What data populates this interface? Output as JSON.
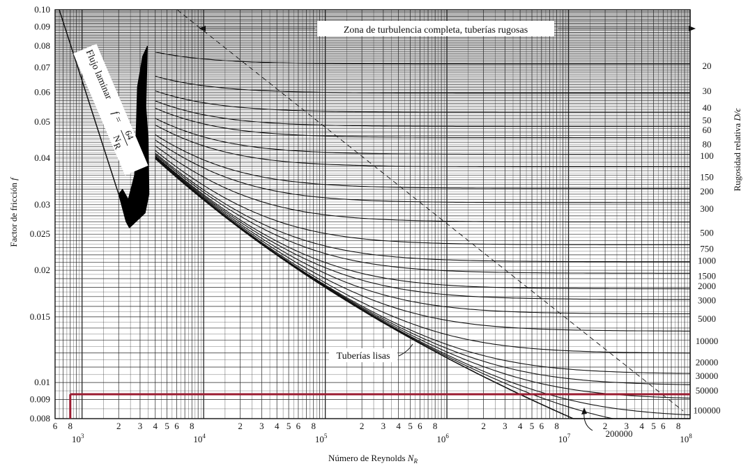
{
  "chart_data": {
    "type": "line",
    "xlabel": "Número de Reynolds",
    "xlabel_sub": "R",
    "xlabel_symbol": "N",
    "ylabel": "Factor de fricción",
    "ylabel_symbol": "f",
    "right_label": "Rugosidad relativa",
    "right_label_symbol": "D/ϵ",
    "x_scale": "log",
    "y_scale": "log",
    "xlim": [
      600,
      100000000
    ],
    "ylim": [
      0.008,
      0.1
    ],
    "grid": true,
    "y_ticks": [
      {
        "value": 0.1,
        "label": "0.10"
      },
      {
        "value": 0.09,
        "label": "0.09"
      },
      {
        "value": 0.08,
        "label": "0.08"
      },
      {
        "value": 0.07,
        "label": "0.07"
      },
      {
        "value": 0.06,
        "label": "0.06"
      },
      {
        "value": 0.05,
        "label": "0.05"
      },
      {
        "value": 0.04,
        "label": "0.04"
      },
      {
        "value": 0.03,
        "label": "0.03"
      },
      {
        "value": 0.025,
        "label": "0.025"
      },
      {
        "value": 0.02,
        "label": "0.02"
      },
      {
        "value": 0.015,
        "label": "0.015"
      },
      {
        "value": 0.01,
        "label": "0.01"
      },
      {
        "value": 0.009,
        "label": "0.009"
      },
      {
        "value": 0.008,
        "label": "0.008"
      }
    ],
    "x_decades": [
      {
        "value": 1000,
        "base": "10",
        "exp": "3"
      },
      {
        "value": 10000,
        "base": "10",
        "exp": "4"
      },
      {
        "value": 100000,
        "base": "10",
        "exp": "5"
      },
      {
        "value": 1000000,
        "base": "10",
        "exp": "6"
      },
      {
        "value": 10000000,
        "base": "10",
        "exp": "7"
      },
      {
        "value": 100000000,
        "base": "10",
        "exp": "8"
      }
    ],
    "x_minor_labels": [
      {
        "value": 600,
        "label": "6"
      },
      {
        "value": 800,
        "label": "8"
      },
      {
        "value": 2000,
        "label": "2"
      },
      {
        "value": 3000,
        "label": "3"
      },
      {
        "value": 4000,
        "label": "4"
      },
      {
        "value": 5000,
        "label": "5"
      },
      {
        "value": 6000,
        "label": "6"
      },
      {
        "value": 8000,
        "label": "8"
      },
      {
        "value": 20000,
        "label": "2"
      },
      {
        "value": 30000,
        "label": "3"
      },
      {
        "value": 40000,
        "label": "4"
      },
      {
        "value": 50000,
        "label": "5"
      },
      {
        "value": 60000,
        "label": "6"
      },
      {
        "value": 80000,
        "label": "8"
      },
      {
        "value": 200000,
        "label": "2"
      },
      {
        "value": 300000,
        "label": "3"
      },
      {
        "value": 400000,
        "label": "4"
      },
      {
        "value": 500000,
        "label": "5"
      },
      {
        "value": 600000,
        "label": "6"
      },
      {
        "value": 800000,
        "label": "8"
      },
      {
        "value": 2000000,
        "label": "2"
      },
      {
        "value": 3000000,
        "label": "3"
      },
      {
        "value": 4000000,
        "label": "4"
      },
      {
        "value": 5000000,
        "label": "5"
      },
      {
        "value": 6000000,
        "label": "6"
      },
      {
        "value": 8000000,
        "label": "8"
      },
      {
        "value": 20000000,
        "label": "2"
      },
      {
        "value": 30000000,
        "label": "3"
      },
      {
        "value": 40000000,
        "label": "4"
      },
      {
        "value": 50000000,
        "label": "5"
      },
      {
        "value": 60000000,
        "label": "6"
      },
      {
        "value": 80000000,
        "label": "8"
      }
    ],
    "relative_roughness": [
      {
        "label": "20",
        "value": 20,
        "f_rough": 0.0705
      },
      {
        "label": "30",
        "value": 30,
        "f_rough": 0.0605
      },
      {
        "label": "40",
        "value": 40,
        "f_rough": 0.0545
      },
      {
        "label": "50",
        "value": 50,
        "f_rough": 0.0505
      },
      {
        "label": "60",
        "value": 60,
        "f_rough": 0.0475
      },
      {
        "label": "80",
        "value": 80,
        "f_rough": 0.0435
      },
      {
        "label": "100",
        "value": 100,
        "f_rough": 0.0405
      },
      {
        "label": "150",
        "value": 150,
        "f_rough": 0.0355
      },
      {
        "label": "200",
        "value": 200,
        "f_rough": 0.0325
      },
      {
        "label": "300",
        "value": 300,
        "f_rough": 0.0292
      },
      {
        "label": "500",
        "value": 500,
        "f_rough": 0.0252
      },
      {
        "label": "750",
        "value": 750,
        "f_rough": 0.0228
      },
      {
        "label": "1000",
        "value": 1000,
        "f_rough": 0.0212
      },
      {
        "label": "1500",
        "value": 1500,
        "f_rough": 0.0193
      },
      {
        "label": "2000",
        "value": 2000,
        "f_rough": 0.0181
      },
      {
        "label": "3000",
        "value": 3000,
        "f_rough": 0.0166
      },
      {
        "label": "5000",
        "value": 5000,
        "f_rough": 0.0148
      },
      {
        "label": "10000",
        "value": 10000,
        "f_rough": 0.0129
      },
      {
        "label": "20000",
        "value": 20000,
        "f_rough": 0.0113
      },
      {
        "label": "30000",
        "value": 30000,
        "f_rough": 0.0104
      },
      {
        "label": "50000",
        "value": 50000,
        "f_rough": 0.0095
      },
      {
        "label": "100000",
        "value": 100000,
        "f_rough": 0.0084
      }
    ],
    "annotation_200000": "200000",
    "laminar": {
      "label_text": "Flujo laminar",
      "formula_lhs": "f =",
      "formula_num": "64",
      "formula_den": "N",
      "formula_den_sub": "R",
      "x": [
        600,
        2000
      ],
      "y": [
        0.1,
        0.032
      ]
    },
    "critical_zone": {
      "x_range": [
        2000,
        4000
      ],
      "y_range": [
        0.026,
        0.08
      ]
    },
    "complete_turbulence_label": "Zona de turbulencia completa, tuberías rugosas",
    "smooth_pipes_label": "Tuberías lisas",
    "highlight": {
      "color": "#9b1b30",
      "y": 0.0093,
      "x_from": 800,
      "x_to": 100000000
    }
  }
}
